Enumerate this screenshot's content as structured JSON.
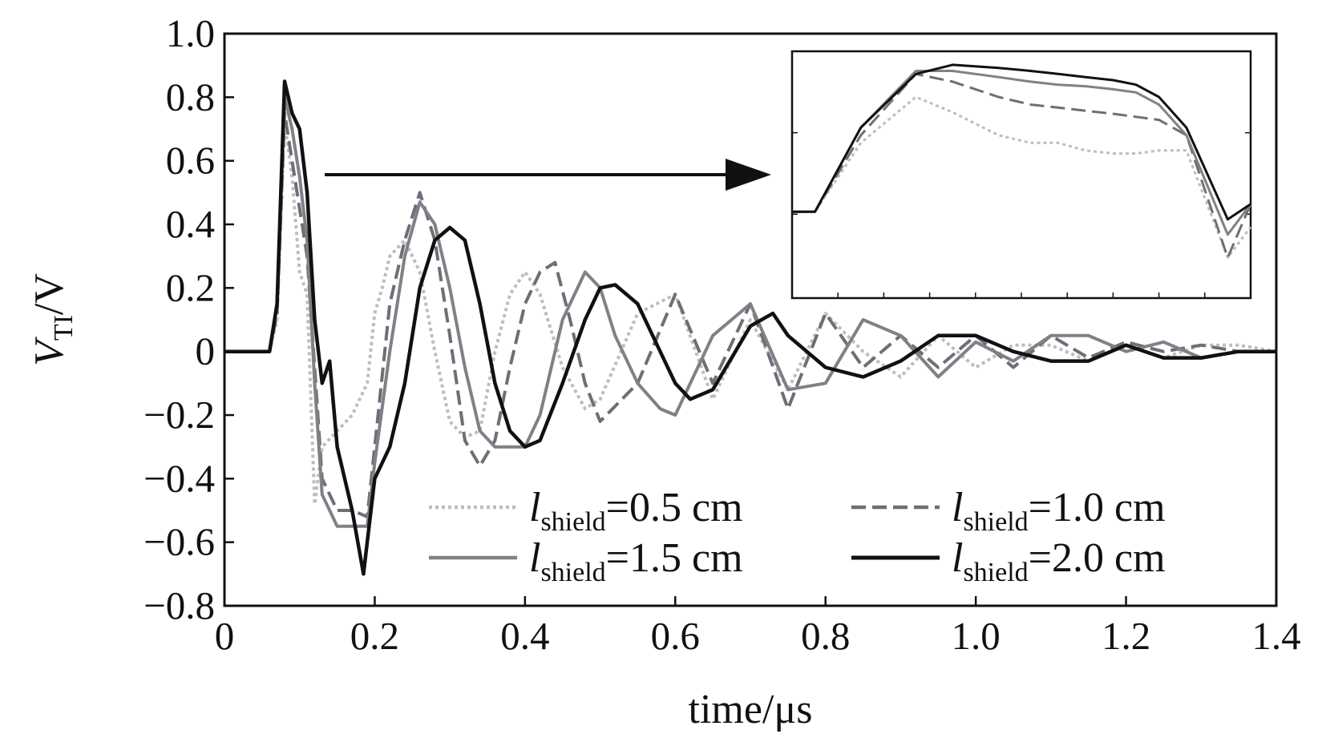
{
  "chart_data": {
    "type": "line",
    "xlabel": "time/μs",
    "ylabel": {
      "main": "V",
      "sub": "TI",
      "suffix": "/V"
    },
    "xlim": [
      0,
      1.4
    ],
    "ylim": [
      -0.8,
      1.0
    ],
    "x_ticks": [
      {
        "value": 0,
        "label": "0"
      },
      {
        "value": 0.2,
        "label": "0.2"
      },
      {
        "value": 0.4,
        "label": "0.4"
      },
      {
        "value": 0.6,
        "label": "0.6"
      },
      {
        "value": 0.8,
        "label": "0.8"
      },
      {
        "value": 1.0,
        "label": "1.0"
      },
      {
        "value": 1.2,
        "label": "1.2"
      },
      {
        "value": 1.4,
        "label": "1.4"
      }
    ],
    "y_ticks": [
      {
        "value": 1.0,
        "label": "1.0"
      },
      {
        "value": 0.8,
        "label": "0.8"
      },
      {
        "value": 0.6,
        "label": "0.6"
      },
      {
        "value": 0.4,
        "label": "0.4"
      },
      {
        "value": 0.2,
        "label": "0.2"
      },
      {
        "value": 0,
        "label": "0"
      },
      {
        "value": -0.2,
        "label": "−0.2"
      },
      {
        "value": -0.4,
        "label": "−0.4"
      },
      {
        "value": -0.6,
        "label": "−0.6"
      },
      {
        "value": -0.8,
        "label": "−0.8"
      }
    ],
    "grid": false,
    "legend_position": "bottom-right",
    "series": [
      {
        "name": "l_shield=0.5 cm",
        "legend": {
          "var": "l",
          "sub": "shield",
          "rest": "=0.5 cm"
        },
        "color": "#bdbdbd",
        "style": "dotted",
        "x": [
          0,
          0.06,
          0.07,
          0.08,
          0.09,
          0.1,
          0.11,
          0.12,
          0.13,
          0.15,
          0.17,
          0.19,
          0.2,
          0.21,
          0.22,
          0.24,
          0.26,
          0.28,
          0.3,
          0.32,
          0.34,
          0.36,
          0.38,
          0.4,
          0.42,
          0.45,
          0.48,
          0.5,
          0.55,
          0.6,
          0.65,
          0.7,
          0.75,
          0.8,
          0.85,
          0.9,
          0.95,
          1.0,
          1.05,
          1.1,
          1.15,
          1.2,
          1.25,
          1.3,
          1.35,
          1.4
        ],
        "y": [
          0.0,
          0.0,
          0.1,
          0.72,
          0.55,
          0.25,
          0.18,
          -0.48,
          -0.3,
          -0.25,
          -0.2,
          -0.1,
          0.12,
          0.2,
          0.3,
          0.35,
          0.25,
          0.0,
          -0.22,
          -0.27,
          -0.25,
          0.0,
          0.18,
          0.25,
          0.18,
          -0.05,
          -0.18,
          -0.15,
          0.12,
          0.18,
          -0.15,
          0.1,
          -0.12,
          0.12,
          0.0,
          -0.08,
          0.05,
          -0.05,
          0.02,
          0.02,
          -0.03,
          0.02,
          -0.02,
          0.02,
          0.02,
          0.0
        ]
      },
      {
        "name": "l_shield=1.0 cm",
        "legend": {
          "var": "l",
          "sub": "shield",
          "rest": "=1.0 cm"
        },
        "color": "#6e6e78",
        "style": "dashed",
        "x": [
          0,
          0.06,
          0.07,
          0.08,
          0.09,
          0.1,
          0.11,
          0.12,
          0.13,
          0.15,
          0.17,
          0.19,
          0.2,
          0.22,
          0.24,
          0.26,
          0.28,
          0.3,
          0.32,
          0.34,
          0.36,
          0.38,
          0.4,
          0.42,
          0.44,
          0.46,
          0.48,
          0.5,
          0.55,
          0.6,
          0.65,
          0.7,
          0.75,
          0.8,
          0.85,
          0.9,
          0.95,
          1.0,
          1.05,
          1.1,
          1.15,
          1.2,
          1.25,
          1.3,
          1.35,
          1.4
        ],
        "y": [
          0.0,
          0.0,
          0.12,
          0.75,
          0.6,
          0.45,
          0.3,
          -0.05,
          -0.4,
          -0.5,
          -0.5,
          -0.52,
          -0.3,
          0.15,
          0.35,
          0.5,
          0.35,
          0.05,
          -0.28,
          -0.36,
          -0.28,
          -0.05,
          0.15,
          0.25,
          0.28,
          0.1,
          -0.1,
          -0.22,
          -0.1,
          0.18,
          -0.1,
          0.15,
          -0.18,
          0.12,
          -0.05,
          0.05,
          -0.05,
          0.05,
          -0.05,
          0.05,
          -0.02,
          0.03,
          0.0,
          0.02,
          0.0,
          0.0
        ]
      },
      {
        "name": "l_shield=1.5 cm",
        "legend": {
          "var": "l",
          "sub": "shield",
          "rest": "=1.5 cm"
        },
        "color": "#808087",
        "style": "solid",
        "x": [
          0,
          0.06,
          0.07,
          0.08,
          0.09,
          0.1,
          0.11,
          0.12,
          0.13,
          0.15,
          0.17,
          0.19,
          0.2,
          0.22,
          0.24,
          0.26,
          0.28,
          0.3,
          0.32,
          0.34,
          0.36,
          0.38,
          0.4,
          0.42,
          0.45,
          0.48,
          0.5,
          0.52,
          0.55,
          0.58,
          0.6,
          0.65,
          0.7,
          0.75,
          0.8,
          0.85,
          0.9,
          0.95,
          1.0,
          1.05,
          1.1,
          1.15,
          1.2,
          1.25,
          1.3,
          1.35,
          1.4
        ],
        "y": [
          0.0,
          0.0,
          0.15,
          0.8,
          0.7,
          0.55,
          0.35,
          -0.1,
          -0.45,
          -0.55,
          -0.55,
          -0.55,
          -0.35,
          0.0,
          0.3,
          0.47,
          0.4,
          0.2,
          -0.05,
          -0.25,
          -0.3,
          -0.3,
          -0.3,
          -0.2,
          0.1,
          0.25,
          0.2,
          0.05,
          -0.1,
          -0.18,
          -0.2,
          0.05,
          0.15,
          -0.12,
          -0.1,
          0.1,
          0.05,
          -0.08,
          0.03,
          -0.03,
          0.05,
          0.05,
          0.0,
          0.03,
          -0.02,
          0.0,
          0.0
        ]
      },
      {
        "name": "l_shield=2.0 cm",
        "legend": {
          "var": "l",
          "sub": "shield",
          "rest": "=2.0 cm"
        },
        "color": "#111111",
        "style": "solid",
        "x": [
          0,
          0.06,
          0.07,
          0.08,
          0.09,
          0.1,
          0.11,
          0.12,
          0.13,
          0.14,
          0.15,
          0.17,
          0.185,
          0.2,
          0.22,
          0.24,
          0.26,
          0.28,
          0.3,
          0.32,
          0.34,
          0.36,
          0.38,
          0.4,
          0.42,
          0.45,
          0.48,
          0.5,
          0.52,
          0.55,
          0.58,
          0.6,
          0.62,
          0.65,
          0.68,
          0.7,
          0.73,
          0.75,
          0.8,
          0.85,
          0.9,
          0.95,
          1.0,
          1.05,
          1.1,
          1.15,
          1.2,
          1.25,
          1.3,
          1.35,
          1.4
        ],
        "y": [
          0.0,
          0.0,
          0.15,
          0.85,
          0.75,
          0.7,
          0.5,
          0.1,
          -0.1,
          -0.03,
          -0.3,
          -0.5,
          -0.7,
          -0.4,
          -0.3,
          -0.1,
          0.2,
          0.35,
          0.39,
          0.35,
          0.15,
          -0.1,
          -0.25,
          -0.3,
          -0.28,
          -0.1,
          0.1,
          0.2,
          0.21,
          0.15,
          0.0,
          -0.1,
          -0.15,
          -0.12,
          0.0,
          0.08,
          0.12,
          0.05,
          -0.05,
          -0.08,
          -0.03,
          0.05,
          0.05,
          0.0,
          -0.03,
          -0.03,
          0.02,
          -0.02,
          -0.02,
          0.0,
          0.0
        ]
      }
    ],
    "inset": {
      "description": "zoomed view of the first peak",
      "series_shapes": [
        {
          "ref": 0,
          "y": [
            0.0,
            0.0,
            0.45,
            0.75,
            0.65,
            0.5,
            0.45,
            0.45,
            0.4,
            0.38,
            0.38,
            0.4,
            0.4,
            -0.3,
            -0.1
          ]
        },
        {
          "ref": 1,
          "y": [
            0.0,
            0.0,
            0.5,
            0.9,
            0.85,
            0.75,
            0.7,
            0.68,
            0.66,
            0.64,
            0.62,
            0.6,
            0.5,
            -0.3,
            0.05
          ]
        },
        {
          "ref": 2,
          "y": [
            0.0,
            0.0,
            0.55,
            0.92,
            0.92,
            0.88,
            0.85,
            0.83,
            0.82,
            0.8,
            0.78,
            0.7,
            0.5,
            -0.15,
            0.05
          ]
        },
        {
          "ref": 3,
          "y": [
            0.0,
            0.0,
            0.55,
            0.9,
            0.96,
            0.94,
            0.92,
            0.9,
            0.88,
            0.86,
            0.83,
            0.75,
            0.55,
            -0.05,
            0.05
          ]
        }
      ]
    }
  }
}
